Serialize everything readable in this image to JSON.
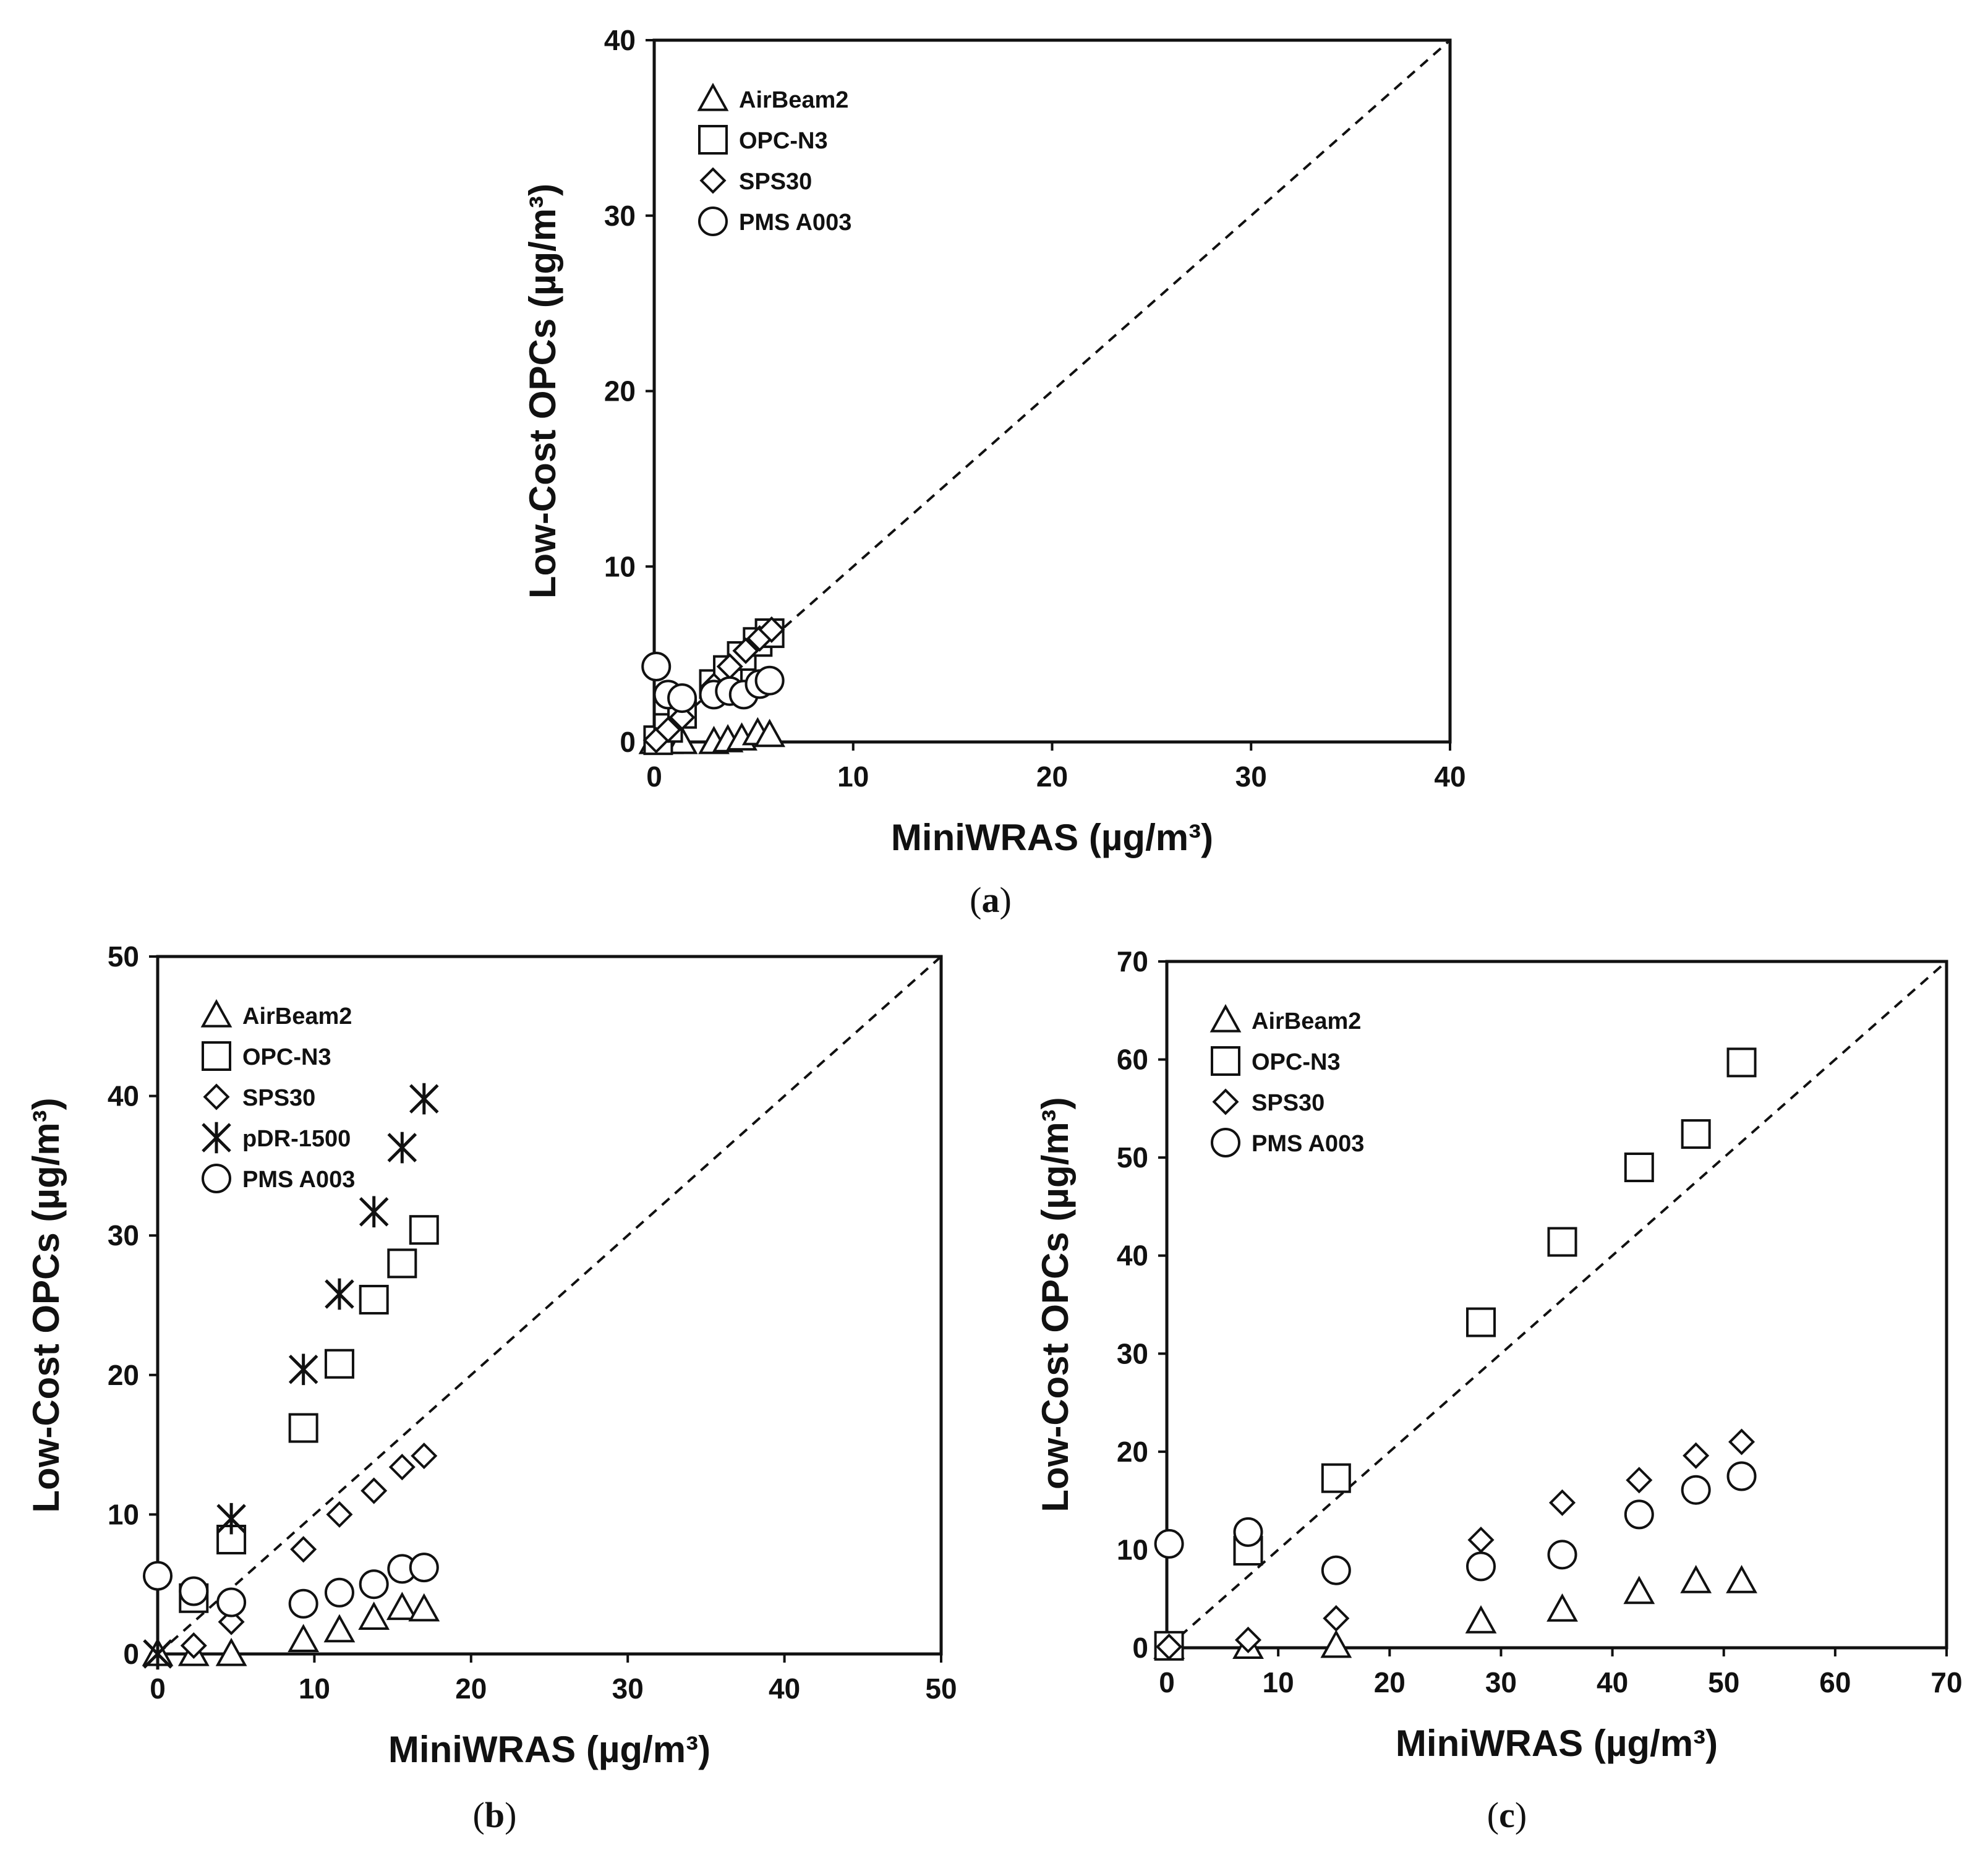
{
  "figure": {
    "panels": [
      {
        "id": "a",
        "label": "(a)",
        "letter": "a"
      },
      {
        "id": "b",
        "label": "(b)",
        "letter": "b"
      },
      {
        "id": "c",
        "label": "(c)",
        "letter": "c"
      }
    ]
  },
  "chart_data": [
    {
      "id": "a",
      "type": "scatter",
      "title": "",
      "xlabel": "MiniWRAS (µg/m³)",
      "ylabel": "Low-Cost OPCs (µg/m³)",
      "xlim": [
        0,
        40
      ],
      "ylim": [
        0,
        40
      ],
      "xticks": [
        0,
        10,
        20,
        30,
        40
      ],
      "yticks": [
        0,
        10,
        20,
        30,
        40
      ],
      "reference_line": "1:1 dashed",
      "legend": [
        "AirBeam2",
        "OPC-N3",
        "SPS30",
        "PMS A003"
      ],
      "legend_position": "top-left",
      "series": [
        {
          "name": "AirBeam2",
          "marker": "triangle",
          "points": [
            [
              0,
              0
            ],
            [
              0.7,
              0
            ],
            [
              1.4,
              0
            ],
            [
              3,
              0
            ],
            [
              3.7,
              0.1
            ],
            [
              4.4,
              0.2
            ],
            [
              5.2,
              0.5
            ],
            [
              5.8,
              0.4
            ]
          ]
        },
        {
          "name": "OPC-N3",
          "marker": "square",
          "points": [
            [
              0.2,
              0.1
            ],
            [
              0.7,
              0.8
            ],
            [
              1.4,
              1.6
            ],
            [
              3,
              3.3
            ],
            [
              3.7,
              4.1
            ],
            [
              4.4,
              4.9
            ],
            [
              5.2,
              5.7
            ],
            [
              5.8,
              6.2
            ]
          ]
        },
        {
          "name": "SPS30",
          "marker": "diamond",
          "points": [
            [
              0.1,
              0.1
            ],
            [
              0.7,
              0.7
            ],
            [
              1.4,
              1.4
            ],
            [
              3,
              3.2
            ],
            [
              3.8,
              4.3
            ],
            [
              4.6,
              5.2
            ],
            [
              5.3,
              5.9
            ],
            [
              5.9,
              6.4
            ]
          ]
        },
        {
          "name": "PMS A003",
          "marker": "circle",
          "points": [
            [
              0.1,
              4.3
            ],
            [
              0.7,
              2.7
            ],
            [
              1.4,
              2.5
            ],
            [
              3,
              2.7
            ],
            [
              3.8,
              2.9
            ],
            [
              4.5,
              2.7
            ],
            [
              5.3,
              3.3
            ],
            [
              5.8,
              3.5
            ]
          ]
        }
      ]
    },
    {
      "id": "b",
      "type": "scatter",
      "title": "",
      "xlabel": "MiniWRAS (µg/m³)",
      "ylabel": "Low-Cost OPCs (µg/m³)",
      "xlim": [
        0,
        50
      ],
      "ylim": [
        0,
        50
      ],
      "xticks": [
        0,
        10,
        20,
        30,
        40,
        50
      ],
      "yticks": [
        0,
        10,
        20,
        30,
        40,
        50
      ],
      "reference_line": "1:1 dashed",
      "legend": [
        "AirBeam2",
        "OPC-N3",
        "SPS30",
        "pDR-1500",
        "PMS A003"
      ],
      "legend_position": "top-left",
      "series": [
        {
          "name": "AirBeam2",
          "marker": "triangle",
          "points": [
            [
              0,
              0
            ],
            [
              2.3,
              0
            ],
            [
              4.7,
              0
            ],
            [
              9.3,
              1.0
            ],
            [
              11.6,
              1.7
            ],
            [
              13.8,
              2.6
            ],
            [
              15.6,
              3.3
            ],
            [
              17,
              3.2
            ]
          ]
        },
        {
          "name": "OPC-N3",
          "marker": "square",
          "points": [
            [
              2.3,
              4.0
            ],
            [
              4.7,
              8.2
            ],
            [
              9.3,
              16.2
            ],
            [
              11.6,
              20.8
            ],
            [
              13.8,
              25.4
            ],
            [
              15.6,
              28.0
            ],
            [
              17,
              30.4
            ]
          ]
        },
        {
          "name": "SPS30",
          "marker": "diamond",
          "points": [
            [
              2.3,
              0.6
            ],
            [
              4.7,
              2.3
            ],
            [
              9.3,
              7.5
            ],
            [
              11.6,
              10.0
            ],
            [
              13.8,
              11.7
            ],
            [
              15.6,
              13.4
            ],
            [
              17,
              14.2
            ]
          ]
        },
        {
          "name": "pDR-1500",
          "marker": "asterisk",
          "points": [
            [
              0,
              0
            ],
            [
              4.7,
              9.7
            ],
            [
              9.3,
              20.4
            ],
            [
              11.6,
              25.8
            ],
            [
              13.8,
              31.7
            ],
            [
              15.6,
              36.3
            ],
            [
              17,
              39.8
            ]
          ]
        },
        {
          "name": "PMS A003",
          "marker": "circle",
          "points": [
            [
              0,
              5.6
            ],
            [
              2.3,
              4.5
            ],
            [
              4.7,
              3.7
            ],
            [
              9.3,
              3.6
            ],
            [
              11.6,
              4.4
            ],
            [
              13.8,
              5.0
            ],
            [
              15.6,
              6.1
            ],
            [
              17,
              6.2
            ]
          ]
        }
      ]
    },
    {
      "id": "c",
      "type": "scatter",
      "title": "",
      "xlabel": "MiniWRAS (µg/m³)",
      "ylabel": "Low-Cost OPCs (µg/m³)",
      "xlim": [
        0,
        70
      ],
      "ylim": [
        0,
        70
      ],
      "xticks": [
        0,
        10,
        20,
        30,
        40,
        50,
        60,
        70
      ],
      "yticks": [
        0,
        10,
        20,
        30,
        40,
        50,
        60,
        70
      ],
      "reference_line": "1:1 dashed",
      "legend": [
        "AirBeam2",
        "OPC-N3",
        "SPS30",
        "PMS A003"
      ],
      "legend_position": "top-left",
      "series": [
        {
          "name": "AirBeam2",
          "marker": "triangle",
          "points": [
            [
              0.2,
              0.1
            ],
            [
              7.3,
              0.1
            ],
            [
              15.2,
              0.2
            ],
            [
              28.2,
              2.7
            ],
            [
              35.5,
              3.9
            ],
            [
              42.4,
              5.7
            ],
            [
              47.5,
              6.8
            ],
            [
              51.6,
              6.8
            ]
          ]
        },
        {
          "name": "OPC-N3",
          "marker": "square",
          "points": [
            [
              0.2,
              0.2
            ],
            [
              7.3,
              9.9
            ],
            [
              15.2,
              17.3
            ],
            [
              28.2,
              33.2
            ],
            [
              35.5,
              41.4
            ],
            [
              42.4,
              49.0
            ],
            [
              47.5,
              52.4
            ],
            [
              51.6,
              59.7
            ]
          ]
        },
        {
          "name": "SPS30",
          "marker": "diamond",
          "points": [
            [
              0.2,
              0.1
            ],
            [
              7.3,
              0.8
            ],
            [
              15.2,
              3.0
            ],
            [
              28.2,
              11.0
            ],
            [
              35.5,
              14.8
            ],
            [
              42.4,
              17.1
            ],
            [
              47.5,
              19.6
            ],
            [
              51.6,
              21.0
            ]
          ]
        },
        {
          "name": "PMS A003",
          "marker": "circle",
          "points": [
            [
              0.2,
              10.6
            ],
            [
              7.3,
              11.8
            ],
            [
              15.2,
              7.9
            ],
            [
              28.2,
              8.3
            ],
            [
              35.5,
              9.5
            ],
            [
              42.4,
              13.6
            ],
            [
              47.5,
              16.1
            ],
            [
              51.6,
              17.5
            ]
          ]
        }
      ]
    }
  ]
}
